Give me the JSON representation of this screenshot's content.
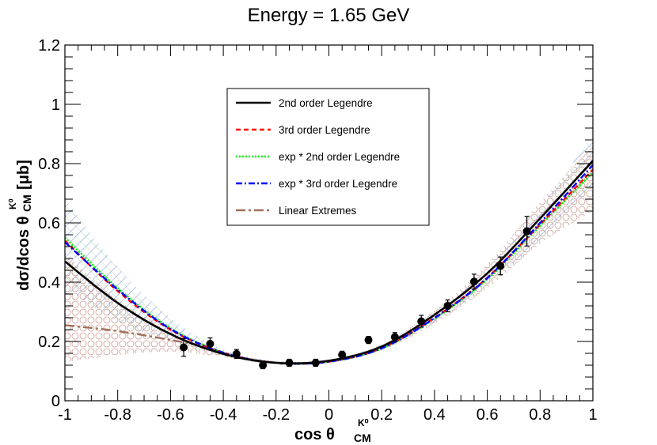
{
  "chart_data": {
    "type": "scatter",
    "title": "Energy = 1.65 GeV",
    "xlabel": "cos θ",
    "xlabel_sup": "K⁰",
    "xlabel_sub": "CM",
    "ylabel": "dσ/dcos θ",
    "ylabel_sup": "K⁰",
    "ylabel_sub": "CM",
    "ylabel_unit": "[μb]",
    "xlim": [
      -1,
      1
    ],
    "ylim": [
      0,
      1.2
    ],
    "x_ticks": [
      -1,
      -0.8,
      -0.6,
      -0.4,
      -0.2,
      0,
      0.2,
      0.4,
      0.6,
      0.8,
      1
    ],
    "x_tick_labels": [
      "-1",
      "-0.8",
      "-0.6",
      "-0.4",
      "-0.2",
      "0",
      "0.2",
      "0.4",
      "0.6",
      "0.8",
      "1"
    ],
    "y_ticks": [
      0,
      0.2,
      0.4,
      0.6,
      0.8,
      1,
      1.2
    ],
    "y_tick_labels": [
      "0",
      "0.2",
      "0.4",
      "0.6",
      "0.8",
      "1",
      "1.2"
    ],
    "grid": false,
    "legend_position": "top-center",
    "data_points": {
      "name": "Data",
      "x": [
        -0.55,
        -0.45,
        -0.35,
        -0.25,
        -0.15,
        -0.05,
        0.05,
        0.15,
        0.25,
        0.35,
        0.45,
        0.55,
        0.65,
        0.75
      ],
      "y": [
        0.18,
        0.192,
        0.158,
        0.12,
        0.128,
        0.128,
        0.155,
        0.205,
        0.215,
        0.268,
        0.32,
        0.402,
        0.455,
        0.572
      ],
      "err": [
        0.03,
        0.02,
        0.015,
        0.012,
        0.012,
        0.012,
        0.012,
        0.012,
        0.015,
        0.02,
        0.02,
        0.025,
        0.03,
        0.05
      ]
    },
    "series": [
      {
        "name": "2nd order Legendre",
        "color": "#000000",
        "style": "solid",
        "x": [
          -1,
          -0.8,
          -0.6,
          -0.4,
          -0.2,
          0,
          0.2,
          0.4,
          0.6,
          0.8,
          1
        ],
        "y": [
          0.47,
          0.33,
          0.225,
          0.158,
          0.128,
          0.135,
          0.183,
          0.29,
          0.43,
          0.615,
          0.81
        ]
      },
      {
        "name": "3rd order Legendre",
        "color": "#ff0000",
        "style": "dashed",
        "x": [
          -1,
          -0.8,
          -0.6,
          -0.4,
          -0.2,
          0,
          0.2,
          0.4,
          0.6,
          0.8,
          1
        ],
        "y": [
          0.54,
          0.37,
          0.24,
          0.162,
          0.128,
          0.132,
          0.178,
          0.28,
          0.415,
          0.595,
          0.78
        ]
      },
      {
        "name": "exp * 2nd order Legendre",
        "color": "#00ee00",
        "style": "dotted",
        "x": [
          -1,
          -0.8,
          -0.6,
          -0.4,
          -0.2,
          0,
          0.2,
          0.4,
          0.6,
          0.8,
          1
        ],
        "y": [
          0.55,
          0.38,
          0.245,
          0.163,
          0.128,
          0.131,
          0.176,
          0.277,
          0.41,
          0.59,
          0.77
        ]
      },
      {
        "name": "exp * 3rd order Legendre",
        "color": "#0000ff",
        "style": "dashdot",
        "x": [
          -1,
          -0.8,
          -0.6,
          -0.4,
          -0.2,
          0,
          0.2,
          0.4,
          0.6,
          0.8,
          1
        ],
        "y": [
          0.535,
          0.375,
          0.242,
          0.162,
          0.128,
          0.132,
          0.177,
          0.279,
          0.414,
          0.6,
          0.795
        ]
      },
      {
        "name": "Linear Extremes",
        "color": "#a0705a",
        "style": "longdashdot",
        "x": [
          -1,
          -0.8,
          -0.6,
          -0.5
        ],
        "y": [
          0.255,
          0.235,
          0.205,
          0.188
        ]
      }
    ],
    "bands": [
      {
        "name": "hatch-band",
        "color": "#4a5bd6",
        "pattern": "diagonal",
        "x": [
          -1,
          -0.8,
          -0.6,
          -0.4,
          -0.2,
          0,
          0.2,
          0.4,
          0.6,
          0.8,
          1
        ],
        "low": [
          0.38,
          0.27,
          0.2,
          0.15,
          0.122,
          0.128,
          0.172,
          0.265,
          0.39,
          0.55,
          0.72
        ],
        "high": [
          0.68,
          0.45,
          0.28,
          0.172,
          0.135,
          0.138,
          0.19,
          0.3,
          0.445,
          0.65,
          0.9
        ]
      },
      {
        "name": "circle-band",
        "color": "#c4948a",
        "pattern": "circles",
        "x": [
          -1,
          -0.8,
          -0.6,
          -0.4,
          -0.2,
          0,
          0.2,
          0.4,
          0.6,
          0.8,
          1
        ],
        "low": [
          0.13,
          0.155,
          0.165,
          0.148,
          0.122,
          0.128,
          0.17,
          0.26,
          0.38,
          0.53,
          0.64
        ],
        "high": [
          0.5,
          0.34,
          0.24,
          0.168,
          0.134,
          0.138,
          0.19,
          0.305,
          0.46,
          0.67,
          0.86
        ]
      }
    ]
  }
}
